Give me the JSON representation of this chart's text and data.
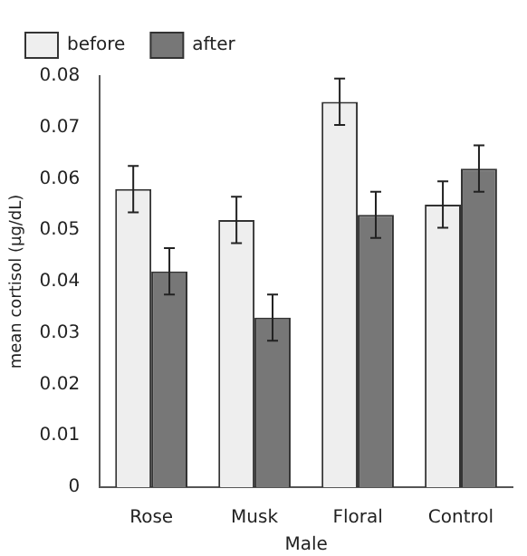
{
  "chart_data": {
    "type": "bar",
    "xlabel": "Male",
    "ylabel": "mean cortisol (μg/dL)",
    "categories": [
      "Rose",
      "Musk",
      "Floral",
      "Control"
    ],
    "series": [
      {
        "name": "before",
        "color": "#eeeeee",
        "values": [
          0.058,
          0.052,
          0.075,
          0.055
        ],
        "errors": [
          0.0045,
          0.0045,
          0.0045,
          0.0045
        ]
      },
      {
        "name": "after",
        "color": "#777777",
        "values": [
          0.042,
          0.033,
          0.053,
          0.062
        ],
        "errors": [
          0.0045,
          0.0045,
          0.0045,
          0.0045
        ]
      }
    ],
    "ylim": [
      0,
      0.08
    ],
    "yticks": [
      0,
      0.01,
      0.02,
      0.03,
      0.04,
      0.05,
      0.06,
      0.07,
      0.08
    ],
    "grid": false,
    "legend": "top"
  }
}
